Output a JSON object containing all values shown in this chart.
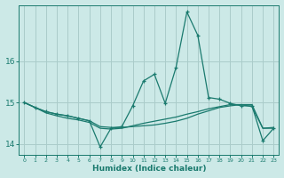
{
  "xlabel": "Humidex (Indice chaleur)",
  "background_color": "#cce9e7",
  "grid_color": "#aaccca",
  "line_color": "#1a7a6e",
  "xlim": [
    -0.5,
    23.5
  ],
  "ylim": [
    13.75,
    17.35
  ],
  "yticks": [
    14,
    15,
    16
  ],
  "xticks": [
    0,
    1,
    2,
    3,
    4,
    5,
    6,
    7,
    8,
    9,
    10,
    11,
    12,
    13,
    14,
    15,
    16,
    17,
    18,
    19,
    20,
    21,
    22,
    23
  ],
  "line1_x": [
    0,
    1,
    2,
    3,
    4,
    5,
    6,
    7,
    8,
    9,
    10,
    11,
    12,
    13,
    14,
    15,
    16,
    17,
    18,
    19,
    20,
    21,
    22,
    23
  ],
  "line1_y": [
    15.0,
    14.88,
    14.78,
    14.72,
    14.68,
    14.62,
    14.56,
    13.93,
    14.38,
    14.42,
    14.92,
    15.52,
    15.68,
    14.98,
    15.85,
    17.18,
    16.62,
    15.12,
    15.08,
    14.98,
    14.92,
    14.92,
    14.08,
    14.38
  ],
  "line2_x": [
    0,
    1,
    2,
    3,
    4,
    5,
    6,
    7,
    8,
    9,
    10,
    11,
    12,
    13,
    14,
    15,
    16,
    17,
    18,
    19,
    20,
    21,
    22,
    23
  ],
  "line2_y": [
    15.0,
    14.88,
    14.78,
    14.72,
    14.68,
    14.62,
    14.56,
    14.42,
    14.4,
    14.4,
    14.42,
    14.44,
    14.46,
    14.5,
    14.55,
    14.62,
    14.72,
    14.8,
    14.88,
    14.92,
    14.95,
    14.95,
    14.38,
    14.38
  ],
  "line3_x": [
    0,
    1,
    2,
    3,
    4,
    5,
    6,
    7,
    8,
    9,
    10,
    11,
    12,
    13,
    14,
    15,
    16,
    17,
    18,
    19,
    20,
    21,
    22,
    23
  ],
  "line3_y": [
    15.0,
    14.88,
    14.75,
    14.68,
    14.62,
    14.58,
    14.52,
    14.38,
    14.36,
    14.38,
    14.44,
    14.5,
    14.55,
    14.6,
    14.65,
    14.72,
    14.78,
    14.85,
    14.9,
    14.95,
    14.95,
    14.9,
    14.38,
    14.4
  ]
}
